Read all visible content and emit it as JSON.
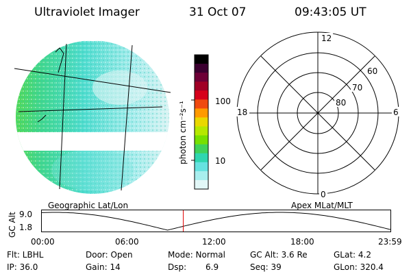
{
  "header": {
    "title": "Ultraviolet Imager",
    "date": "31 Oct 07",
    "time": "09:43:05 UT"
  },
  "colorbar": {
    "unit_label": "photon cm⁻²s⁻¹",
    "ticks": [
      "100",
      "10"
    ],
    "colors": [
      "#000000",
      "#3b0030",
      "#6e0037",
      "#a10026",
      "#d6001b",
      "#f04a10",
      "#ff9a00",
      "#e9d800",
      "#b5e800",
      "#76e000",
      "#3fd25a",
      "#2fd6b0",
      "#66e2e0",
      "#a8eeee",
      "#e2f7f7"
    ]
  },
  "polar_plot": {
    "mlt_labels": {
      "top": "12",
      "left": "18",
      "right": "6",
      "bottom": "0"
    },
    "lat_labels": [
      "60",
      "70",
      "80"
    ]
  },
  "timeline": {
    "y_axis_label": "GC Alt",
    "y_ticks": [
      "9.0",
      "1.8"
    ],
    "left_label": "Geographic Lat/Lon",
    "right_label": "Apex MLat/MLT",
    "x_ticks": [
      "00:00",
      "06:00",
      "12:00",
      "18:00",
      "23:59"
    ],
    "current_time_fraction": 0.405
  },
  "info": {
    "row1": {
      "filter": "Flt: LBHL",
      "door": "Door: Open",
      "mode": "Mode: Normal",
      "gc_alt": "GC Alt: 3.6 Re",
      "glat": "GLat:   4.2"
    },
    "row2": {
      "ip": "IP: 36.0",
      "gain": "Gain: 14",
      "dsp_label": "Dsp:",
      "dsp_value": "6.9",
      "seq": "Seq: 39",
      "glon": "GLon: 320.4"
    }
  }
}
